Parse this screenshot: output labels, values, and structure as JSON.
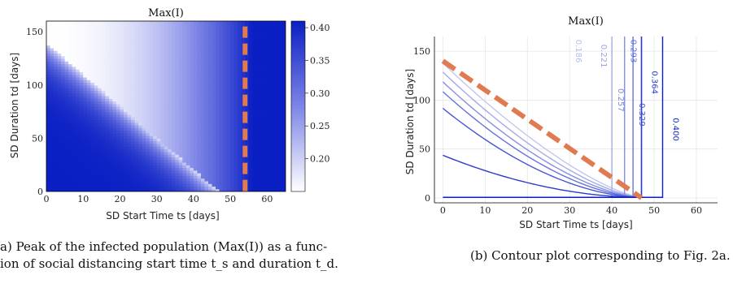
{
  "captions": {
    "a_line1": "a) Peak of the infected population (Max(I)) as a func-",
    "a_line2": "ion of social distancing start time t_s and duration t_d.",
    "b": "(b) Contour plot corresponding to Fig. 2a."
  },
  "chart_data": [
    {
      "type": "heatmap",
      "title": "Max(I)",
      "xlabel": "SD Start Time ts [days]",
      "ylabel": "SD Duration td [days]",
      "xlim": [
        0,
        65
      ],
      "ylim": [
        0,
        160
      ],
      "xticks": [
        0,
        10,
        20,
        30,
        40,
        50,
        60
      ],
      "yticks": [
        0,
        50,
        100,
        150
      ],
      "colorbar": {
        "ticks": [
          0.2,
          0.25,
          0.3,
          0.35,
          0.4
        ],
        "tick_labels": [
          "0.20",
          "0.25",
          "0.30",
          "0.35",
          "0.40"
        ],
        "range": [
          0.15,
          0.41
        ],
        "low_color": "#ffffff",
        "high_color": "#0a1fc4"
      },
      "dashed_line": {
        "x": 54,
        "y_range": [
          0,
          155
        ],
        "color": "#e07a50"
      }
    },
    {
      "type": "line",
      "subtype": "contour",
      "title": "Max(I)",
      "xlabel": "SD Start Time ts [days]",
      "ylabel": "SD Duration td [days]",
      "xlim": [
        -2,
        65
      ],
      "ylim": [
        -5,
        165
      ],
      "xticks": [
        0,
        10,
        20,
        30,
        40,
        50,
        60
      ],
      "yticks": [
        0,
        50,
        100,
        150
      ],
      "grid": true,
      "contour_labels": [
        "0.186",
        "0.221",
        "0.257",
        "0.293",
        "0.329",
        "0.364",
        "0.400"
      ],
      "contours": [
        {
          "level": "0.186",
          "start_y": 137,
          "x_end": 47,
          "vertical_x": null
        },
        {
          "level": "0.221",
          "start_y": 128,
          "x_end": 47,
          "vertical_x": 40
        },
        {
          "level": "0.257",
          "start_y": 118,
          "x_end": 47,
          "vertical_x": 43
        },
        {
          "level": "0.293",
          "start_y": 108,
          "x_end": 47,
          "vertical_x": 45
        },
        {
          "level": "0.329",
          "start_y": 91,
          "x_end": 47,
          "vertical_x": 47
        },
        {
          "level": "0.364",
          "start_y": 43,
          "x_end": 47,
          "vertical_x": 47
        },
        {
          "level": "0.400",
          "start_y": null,
          "x_end": 52,
          "vertical_x": 52
        }
      ],
      "dashed_line": {
        "x": [
          0,
          47
        ],
        "y": [
          140,
          0
        ],
        "color": "#e07a50"
      }
    }
  ]
}
